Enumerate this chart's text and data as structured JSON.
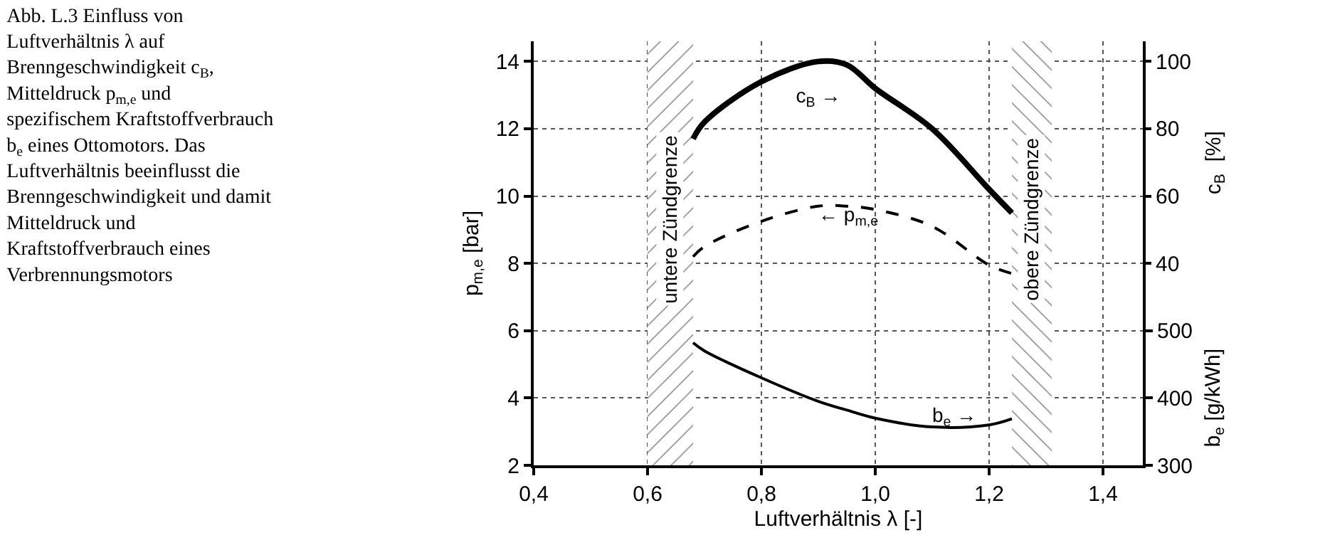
{
  "chart_data": {
    "type": "line",
    "title": "Abb. L.3 Einfluss von Luftverhältnis λ auf Brenngeschwindigkeit c$_{B}$, Mitteldruck p$_{m,e}$ und spezifischem Kraftstoffverbrauch b$_{e}$ eines Ottomotors. Das Luftverhältnis beeinflusst die Brenngeschwindigkeit und damit Mitteldruck und Kraftstoffverbrauch eines Verbrennungsmotors",
    "xlabel": "Luftverhältnis λ [-]",
    "ylabel": "p$_{m,e}$ [bar]",
    "y2label": "c$_{B}$  [%]",
    "y3label": "b$_{e}$ [g/kWh]",
    "x": [
      0.68,
      0.7,
      0.8,
      0.9,
      0.95,
      1.0,
      1.1,
      1.2,
      1.24
    ],
    "xlim": [
      0.4,
      1.47
    ],
    "xticks": [
      {
        "value": 0.4,
        "label": "0,4"
      },
      {
        "value": 0.6,
        "label": "0,6"
      },
      {
        "value": 0.8,
        "label": "0,8"
      },
      {
        "value": 1.0,
        "label": "1,0"
      },
      {
        "value": 1.2,
        "label": "1,2"
      },
      {
        "value": 1.4,
        "label": "1,4"
      }
    ],
    "ylim": [
      2,
      14.6
    ],
    "yticks": [
      2,
      4,
      6,
      8,
      10,
      12,
      14
    ],
    "y2lim": [
      -20,
      106
    ],
    "y2ticks": [
      40,
      60,
      80,
      100
    ],
    "y3lim": [
      300,
      930
    ],
    "y3ticks": [
      300,
      400,
      500
    ],
    "series": [
      {
        "name": "c$_{B}$ →",
        "color": "#000000",
        "axis": "y2",
        "line_style": "solid",
        "values": [
          77,
          82,
          94,
          100,
          99,
          92,
          80,
          62,
          55
        ]
      },
      {
        "name": "← p$_{m,e}$",
        "color": "#000000",
        "line_style": "dashed",
        "values": [
          8.2,
          8.5,
          9.25,
          9.7,
          9.7,
          9.6,
          9.1,
          7.95,
          7.7
        ]
      },
      {
        "name": "b$_{e}$ →",
        "color": "#000000",
        "axis": "y3",
        "line_style": "solid",
        "values": [
          482,
          470,
          430,
          395,
          382,
          370,
          357,
          360,
          369
        ]
      }
    ],
    "bands": [
      {
        "axis": "x",
        "from": 0.6,
        "to": 0.68,
        "label": "untere Zündgrenze",
        "color": "#000000"
      },
      {
        "axis": "x",
        "from": 1.24,
        "to": 1.31,
        "label": "obere Zündgrenze",
        "color": "#000000"
      }
    ],
    "grid": true,
    "legend": false,
    "marker": "none"
  }
}
